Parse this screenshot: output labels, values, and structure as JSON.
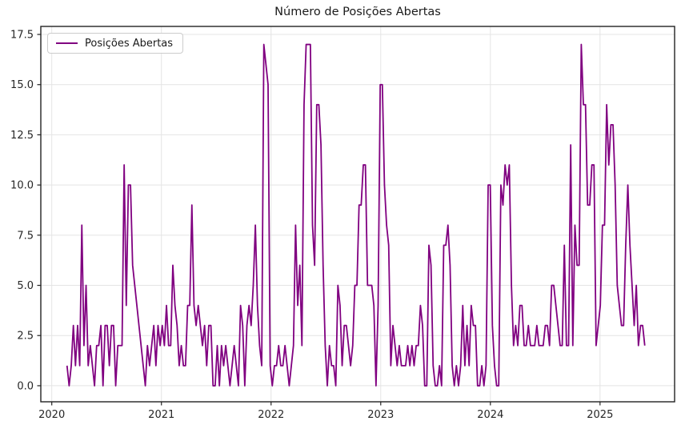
{
  "chart_data": {
    "type": "line",
    "title": "Número de Posições Abertas",
    "xlabel": "",
    "ylabel": "",
    "legend": {
      "entries": [
        "Posições Abertas"
      ],
      "position": "upper left"
    },
    "grid": true,
    "colors": {
      "line": "#800080",
      "grid": "#e4e4e4",
      "spine": "#222222",
      "tick_text": "#262626",
      "background": "#ffffff"
    },
    "xlim": [
      2019.9,
      2025.68
    ],
    "ylim": [
      -0.8,
      17.9
    ],
    "xticks": {
      "values": [
        2020,
        2021,
        2022,
        2023,
        2024,
        2025
      ],
      "labels": [
        "2020",
        "2021",
        "2022",
        "2023",
        "2024",
        "2025"
      ]
    },
    "yticks": {
      "values": [
        0,
        2.5,
        5.0,
        7.5,
        10.0,
        12.5,
        15.0,
        17.5
      ],
      "labels": [
        "0.0",
        "2.5",
        "5.0",
        "7.5",
        "10.0",
        "12.5",
        "15.0",
        "17.5"
      ]
    },
    "series": [
      {
        "name": "Posições Abertas",
        "color": "#800080",
        "start_year": 2020.139,
        "step_years": 0.0193,
        "values": [
          1,
          0,
          1,
          3,
          1,
          3,
          1,
          8,
          2,
          5,
          1,
          2,
          1,
          0,
          2,
          2,
          3,
          0,
          3,
          3,
          1,
          3,
          3,
          0,
          2,
          2,
          2,
          11,
          4,
          10,
          10,
          6,
          5,
          4,
          3,
          2,
          1,
          0,
          2,
          1,
          2,
          3,
          1,
          3,
          2,
          3,
          2,
          4,
          2,
          2,
          6,
          4,
          3,
          1,
          2,
          1,
          1,
          4,
          4,
          9,
          4,
          3,
          4,
          3,
          2,
          3,
          1,
          3,
          3,
          0,
          0,
          2,
          0,
          2,
          1,
          2,
          1,
          0,
          1,
          2,
          1,
          0,
          4,
          3,
          0,
          3,
          4,
          3,
          5,
          8,
          4,
          2,
          1,
          17,
          16,
          15,
          1,
          0,
          1,
          1,
          2,
          1,
          1,
          2,
          1,
          0,
          1,
          2,
          8,
          4,
          6,
          2,
          14,
          17,
          17,
          17,
          8,
          6,
          14,
          14,
          12,
          6,
          2,
          0,
          2,
          1,
          1,
          0,
          5,
          4,
          1,
          3,
          3,
          2,
          1,
          2,
          5,
          5,
          9,
          9,
          11,
          11,
          5,
          5,
          5,
          4,
          0,
          4,
          15,
          15,
          10,
          8,
          7,
          1,
          3,
          2,
          1,
          2,
          1,
          1,
          1,
          2,
          1,
          2,
          1,
          2,
          2,
          4,
          3,
          0,
          0,
          7,
          6,
          1,
          0,
          0,
          1,
          0,
          7,
          7,
          8,
          6,
          1,
          0,
          1,
          0,
          1,
          4,
          1,
          3,
          1,
          4,
          3,
          3,
          0,
          0,
          1,
          0,
          1,
          10,
          10,
          3,
          1,
          0,
          0,
          10,
          9,
          11,
          10,
          11,
          5,
          2,
          3,
          2,
          4,
          4,
          2,
          2,
          3,
          2,
          2,
          2,
          3,
          2,
          2,
          2,
          3,
          3,
          2,
          5,
          5,
          4,
          3,
          2,
          2,
          7,
          2,
          2,
          12,
          2,
          8,
          6,
          6,
          17,
          14,
          14,
          9,
          9,
          11,
          11,
          2,
          3,
          4,
          8,
          8,
          14,
          11,
          13,
          13,
          10,
          5,
          4,
          3,
          3,
          7,
          10,
          7,
          5,
          3,
          5,
          2,
          3,
          3,
          2
        ]
      }
    ]
  }
}
